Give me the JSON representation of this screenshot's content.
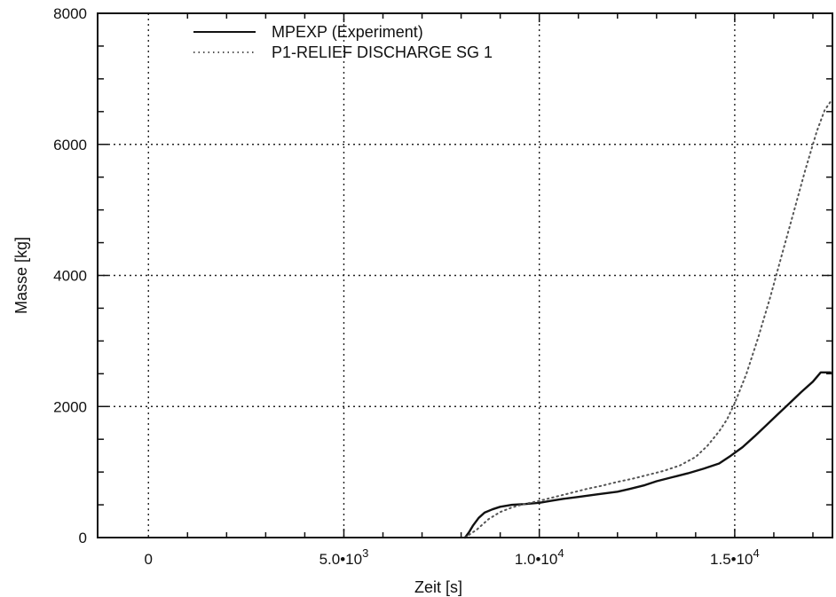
{
  "chart_data": {
    "type": "line",
    "title": "",
    "xlabel": "Zeit [s]",
    "ylabel": "Masse [kg]",
    "xlim": [
      -1300,
      17500
    ],
    "ylim": [
      0,
      8000
    ],
    "x_ticks": [
      {
        "value": 0,
        "mant": "0",
        "exp": ""
      },
      {
        "value": 5000,
        "mant": "5.0•10",
        "exp": "3"
      },
      {
        "value": 10000,
        "mant": "1.0•10",
        "exp": "4"
      },
      {
        "value": 15000,
        "mant": "1.5•10",
        "exp": "4"
      }
    ],
    "y_ticks": [
      0,
      2000,
      4000,
      6000,
      8000
    ],
    "y_tick_labels": [
      "0",
      "2000",
      "4000",
      "6000",
      "8000"
    ],
    "grid": true,
    "legend_position": "top-left",
    "series": [
      {
        "name": "MPEXP (Experiment)",
        "style": "solid",
        "color": "#111111",
        "x": [
          8100,
          8200,
          8300,
          8450,
          8600,
          8800,
          9000,
          9300,
          9600,
          10000,
          10300,
          10600,
          11000,
          11500,
          12000,
          12300,
          12700,
          13000,
          13400,
          13800,
          14200,
          14600,
          14900,
          15200,
          15500,
          15800,
          16100,
          16400,
          16700,
          17000,
          17200,
          17450
        ],
        "y": [
          0,
          80,
          180,
          300,
          380,
          430,
          470,
          500,
          510,
          530,
          560,
          590,
          620,
          660,
          700,
          740,
          800,
          860,
          920,
          980,
          1050,
          1130,
          1250,
          1380,
          1540,
          1710,
          1880,
          2050,
          2220,
          2380,
          2520,
          2520
        ]
      },
      {
        "name": "P1-RELIEF DISCHARGE SG 1",
        "style": "dotted",
        "color": "#555555",
        "x": [
          8100,
          8400,
          8700,
          9000,
          9300,
          9600,
          10000,
          10400,
          10800,
          11200,
          11600,
          12000,
          12400,
          12800,
          13200,
          13600,
          14000,
          14300,
          14600,
          14800,
          15000,
          15300,
          15600,
          15900,
          16200,
          16500,
          16800,
          17100,
          17300,
          17450
        ],
        "y": [
          0,
          120,
          280,
          390,
          460,
          510,
          560,
          620,
          680,
          740,
          790,
          850,
          900,
          960,
          1020,
          1100,
          1230,
          1400,
          1620,
          1800,
          2050,
          2500,
          3050,
          3650,
          4300,
          4950,
          5600,
          6200,
          6520,
          6650
        ]
      }
    ]
  }
}
